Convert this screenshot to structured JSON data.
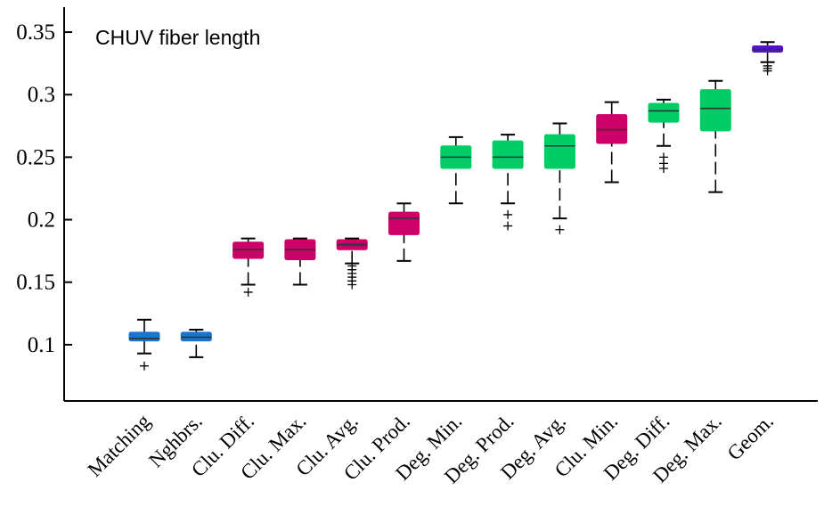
{
  "chart_data": {
    "type": "box",
    "title": "CHUV fiber length",
    "xlabel": "",
    "ylabel": "",
    "ylim": [
      0.055,
      0.37
    ],
    "yticks": [
      0.1,
      0.15,
      0.2,
      0.25,
      0.3,
      0.35
    ],
    "ytick_labels": [
      "0.1",
      "0.15",
      "0.2",
      "0.25",
      "0.3",
      "0.35"
    ],
    "grid": false,
    "legend": "none",
    "colors": {
      "blue": "#1874cd",
      "magenta": "#cc0066",
      "green": "#00cc66",
      "purple": "#5511cc"
    },
    "categories": [
      "Matching",
      "Nghbrs.",
      "Clu. Diff.",
      "Clu. Max.",
      "Clu. Avg.",
      "Clu. Prod.",
      "Deg. Min.",
      "Deg. Prod.",
      "Deg. Avg.",
      "Clu. Min.",
      "Deg. Diff.",
      "Deg. Max.",
      "Geom."
    ],
    "boxes": [
      {
        "category": "Matching",
        "color": "blue",
        "whisker_low": 0.093,
        "q1": 0.103,
        "median": 0.105,
        "q3": 0.11,
        "whisker_high": 0.12,
        "outliers": [
          0.083
        ]
      },
      {
        "category": "Nghbrs.",
        "color": "blue",
        "whisker_low": 0.09,
        "q1": 0.103,
        "median": 0.106,
        "q3": 0.11,
        "whisker_high": 0.112,
        "outliers": []
      },
      {
        "category": "Clu. Diff.",
        "color": "magenta",
        "whisker_low": 0.148,
        "q1": 0.169,
        "median": 0.176,
        "q3": 0.182,
        "whisker_high": 0.185,
        "outliers": [
          0.142
        ]
      },
      {
        "category": "Clu. Max.",
        "color": "magenta",
        "whisker_low": 0.148,
        "q1": 0.168,
        "median": 0.176,
        "q3": 0.184,
        "whisker_high": 0.185,
        "outliers": []
      },
      {
        "category": "Clu. Avg.",
        "color": "magenta",
        "whisker_low": 0.165,
        "q1": 0.176,
        "median": 0.18,
        "q3": 0.184,
        "whisker_high": 0.185,
        "outliers": [
          0.163,
          0.16,
          0.157,
          0.154,
          0.151,
          0.148
        ]
      },
      {
        "category": "Clu. Prod.",
        "color": "magenta",
        "whisker_low": 0.167,
        "q1": 0.188,
        "median": 0.201,
        "q3": 0.206,
        "whisker_high": 0.213,
        "outliers": []
      },
      {
        "category": "Deg. Min.",
        "color": "green",
        "whisker_low": 0.213,
        "q1": 0.241,
        "median": 0.25,
        "q3": 0.259,
        "whisker_high": 0.266,
        "outliers": []
      },
      {
        "category": "Deg. Prod.",
        "color": "green",
        "whisker_low": 0.213,
        "q1": 0.241,
        "median": 0.25,
        "q3": 0.263,
        "whisker_high": 0.268,
        "outliers": [
          0.204,
          0.195
        ]
      },
      {
        "category": "Deg. Avg.",
        "color": "green",
        "whisker_low": 0.201,
        "q1": 0.241,
        "median": 0.259,
        "q3": 0.268,
        "whisker_high": 0.277,
        "outliers": [
          0.192
        ]
      },
      {
        "category": "Clu. Min.",
        "color": "magenta",
        "whisker_low": 0.23,
        "q1": 0.261,
        "median": 0.272,
        "q3": 0.284,
        "whisker_high": 0.294,
        "outliers": []
      },
      {
        "category": "Deg. Diff.",
        "color": "green",
        "whisker_low": 0.259,
        "q1": 0.278,
        "median": 0.287,
        "q3": 0.293,
        "whisker_high": 0.296,
        "outliers": [
          0.25,
          0.245,
          0.241
        ]
      },
      {
        "category": "Deg. Max.",
        "color": "green",
        "whisker_low": 0.222,
        "q1": 0.271,
        "median": 0.289,
        "q3": 0.304,
        "whisker_high": 0.311,
        "outliers": []
      },
      {
        "category": "Geom.",
        "color": "purple",
        "whisker_low": 0.326,
        "q1": 0.334,
        "median": 0.336,
        "q3": 0.339,
        "whisker_high": 0.342,
        "outliers": [
          0.323,
          0.321,
          0.319
        ]
      }
    ]
  }
}
